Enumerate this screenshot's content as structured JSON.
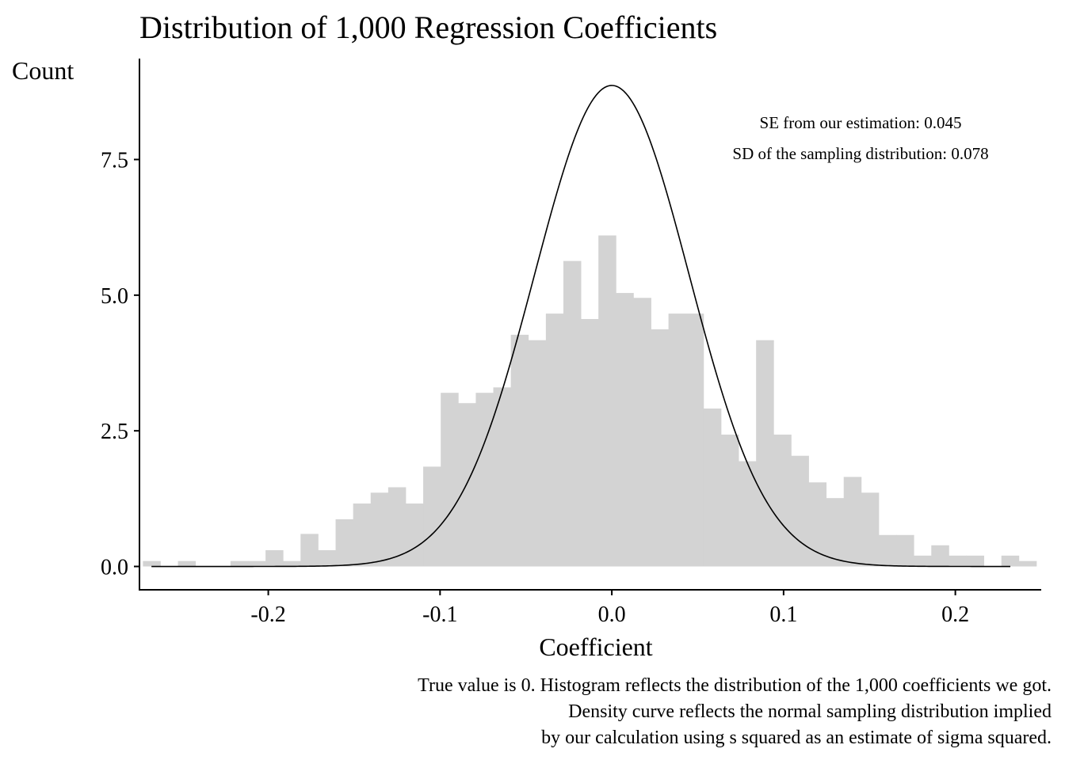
{
  "chart_data": {
    "type": "bar",
    "title": "Distribution of 1,000 Regression Coefficients",
    "xlabel": "Coefficient",
    "ylabel": "Count",
    "xlim": [
      -0.275,
      0.25
    ],
    "ylim": [
      -0.43,
      9.36
    ],
    "x_ticks": [
      -0.2,
      -0.1,
      0.0,
      0.1,
      0.2
    ],
    "x_tick_labels": [
      "-0.2",
      "-0.1",
      "0.0",
      "0.1",
      "0.2"
    ],
    "y_ticks": [
      0,
      2.5,
      5,
      7.5
    ],
    "y_tick_labels": [
      "0.0",
      "2.5",
      "5.0",
      "7.5"
    ],
    "grid": false,
    "histogram": {
      "bin_width": 0.0102,
      "bin_starts": [
        -0.273,
        -0.2628,
        -0.2526,
        -0.2424,
        -0.2322,
        -0.222,
        -0.2118,
        -0.2016,
        -0.1914,
        -0.1812,
        -0.171,
        -0.1608,
        -0.1506,
        -0.1404,
        -0.1302,
        -0.12,
        -0.1098,
        -0.0996,
        -0.0894,
        -0.0792,
        -0.069,
        -0.0588,
        -0.0486,
        -0.0384,
        -0.0282,
        -0.018,
        -0.0078,
        0.0024,
        0.0126,
        0.0228,
        0.033,
        0.0432,
        0.0534,
        0.0636,
        0.0738,
        0.084,
        0.0942,
        0.1044,
        0.1146,
        0.1248,
        0.135,
        0.1452,
        0.1554,
        0.1656,
        0.1758,
        0.186,
        0.1962,
        0.2064,
        0.2166,
        0.2268,
        0.237
      ],
      "values": [
        0.1,
        0.0,
        0.1,
        0.0,
        0.0,
        0.1,
        0.1,
        0.3,
        0.1,
        0.6,
        0.3,
        0.87,
        1.16,
        1.36,
        1.46,
        1.16,
        1.84,
        3.2,
        3.01,
        3.2,
        3.3,
        4.27,
        4.17,
        4.66,
        5.63,
        4.56,
        6.1,
        5.04,
        4.95,
        4.37,
        4.66,
        4.66,
        2.91,
        2.43,
        1.94,
        4.17,
        2.43,
        2.04,
        1.55,
        1.26,
        1.65,
        1.36,
        0.58,
        0.58,
        0.2,
        0.39,
        0.2,
        0.2,
        0.0,
        0.2,
        0.1
      ],
      "color": "#d3d3d3"
    },
    "density_curve": {
      "distribution": "normal",
      "mean": 0,
      "sd": 0.045,
      "x_range": [
        -0.268,
        0.232
      ],
      "color": "#000000"
    },
    "annotations": [
      "SE from our estimation: 0.045",
      "SD of the sampling distribution: 0.078"
    ],
    "caption": [
      "True value is 0. Histogram reflects the distribution of the 1,000 coefficients we got.",
      "Density curve reflects the normal sampling distribution implied",
      "by our calculation using s squared as an estimate of sigma squared."
    ]
  }
}
